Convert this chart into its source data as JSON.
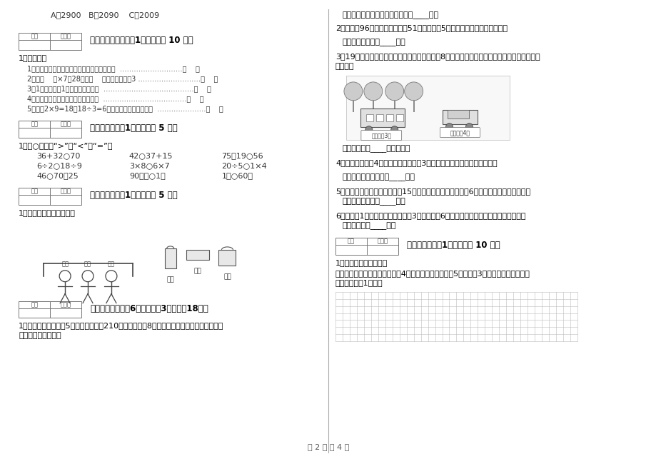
{
  "bg_color": "#ffffff",
  "page_width": 9.2,
  "page_height": 6.5,
  "footer_text": "第 2 页 共 4 页",
  "left_top_line": "A．2900   B．2090    C．2009",
  "s5_title": "五、判断对与错（共1大题，共计 10 分）",
  "s5_sub": "1、判一判。",
  "s5_items": [
    "1．一个数的最高位是万位，这个数是四位数。  ………………………（    ）",
    "2．在（    ）×7＜28中，（    ）里最大应该堓3 ………………………（    ）",
    "3．1千克铁条和1千克木条一样重。  …………………………………（    ）",
    "4．称物体的质量可以用天平和米尺。  ………………………………（    ）",
    "5．计碗2×9=18和18÷3=6用的是同一句乘法口诀。  …………………（    ）"
  ],
  "s6_title": "六、比一比（共1大题，共计 5 分）",
  "s6_sub": "1、在○里填上“>”、“<”或“=”。",
  "s6_rows": [
    [
      "36+32○70",
      "42○37+15",
      "75－19○56"
    ],
    [
      "6÷2○18÷9",
      "3×8○6×7",
      "20÷5○1×4"
    ],
    [
      "46○70－25",
      "90厘米○1米",
      "1时○60分"
    ]
  ],
  "s7_title": "七、连一连（共1大题，共计 5 分）",
  "s7_sub": "1、我会观察，我会连线。",
  "s8_title": "八、解决问题（共6小题，每题3分，共计18分）",
  "s8_q1_lines": [
    "1、育才学校二年级有5个班，共有学生210人，每班要选8人参加跳绳比赛，二年级没有参加",
    "绳比赛的有多少人？"
  ],
  "r_ans1": "答：二年级没有参加跳绳比赛的有____人。",
  "r_q2": "2、一本书96页，花花已经看刱51页，剩下的5天看完。平均每天要看几页？",
  "r_ans2": "答：平均每天要看____页。",
  "r_q3_lines": [
    "3、19只小动物参加森林运动会，用面包车送赸8只小动物后，剩下的坐小汽车，至少需要几辆",
    "小汽车？"
  ],
  "r_ans3": "答：至少需要____辆小汽车。",
  "r_q4": "4、动物园有熊猾4只，有猴子是熊猾的3倍。问一共有熊猾和猴子多少只？",
  "r_ans4": "答：一共有熊猾和猴子____只。",
  "r_q5": "5、小红看故事书，第一天看了15页，第二天看的比第一天少6页，两天一共看了多少页？",
  "r_ans5": "答：两天一共看了____页。",
  "r_q6": "6、小东有1元，小明的錢是小东的3倍，小明抙6个本子刚好把錢用完，每个本子几元？",
  "r_ans6": "答：每个本子____元。",
  "s10_title": "十、综合题（共1大题，共计 10 分）",
  "s10_q1": "1、动手操作，我会画。",
  "s10_q1b_lines": [
    "在下面的方格纸上画一个边长是4厘米的正方形和一个长5厘米、厘3厘米的长方形。（每个",
    "小格的边长是1厘米）"
  ]
}
